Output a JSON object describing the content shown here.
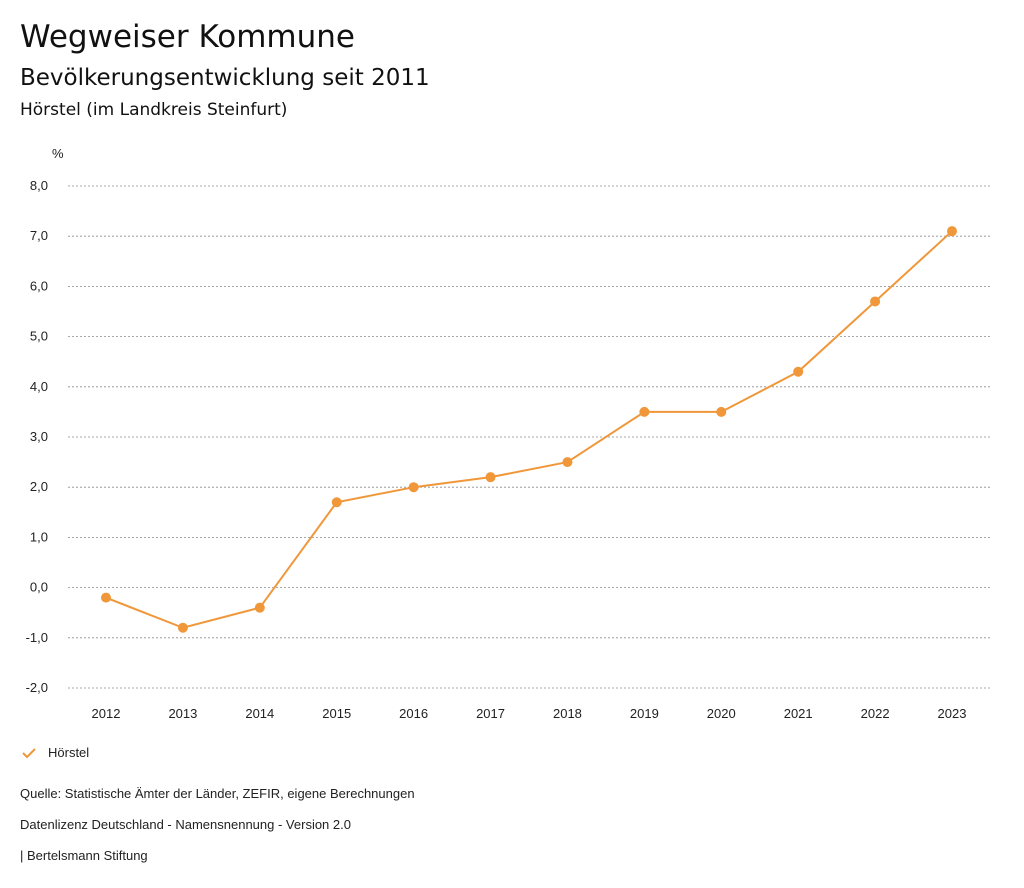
{
  "header": {
    "brand": "Wegweiser Kommune",
    "title": "Bevölkerungsentwicklung seit 2011",
    "subtitle": "Hörstel (im Landkreis Steinfurt)"
  },
  "chart_data": {
    "type": "line",
    "title": "Bevölkerungsentwicklung seit 2011",
    "subtitle": "Hörstel (im Landkreis Steinfurt)",
    "xlabel": "",
    "ylabel": "%",
    "ylim": [
      -2.0,
      8.0
    ],
    "yticks": [
      -2.0,
      -1.0,
      0.0,
      1.0,
      2.0,
      3.0,
      4.0,
      5.0,
      6.0,
      7.0,
      8.0
    ],
    "ytick_labels": [
      "-2,0",
      "-1,0",
      "0,0",
      "1,0",
      "2,0",
      "3,0",
      "4,0",
      "5,0",
      "6,0",
      "7,0",
      "8,0"
    ],
    "categories": [
      "2012",
      "2013",
      "2014",
      "2015",
      "2016",
      "2017",
      "2018",
      "2019",
      "2020",
      "2021",
      "2022",
      "2023"
    ],
    "series": [
      {
        "name": "Hörstel",
        "color": "#f0973a",
        "values": [
          -0.2,
          -0.8,
          -0.4,
          1.7,
          2.0,
          2.2,
          2.5,
          3.5,
          3.5,
          4.3,
          5.7,
          7.1
        ]
      }
    ],
    "grid": true,
    "legend": "bottom-left"
  },
  "legend": {
    "items": [
      {
        "label": "Hörstel",
        "icon": "check-icon",
        "color": "#f0973a"
      }
    ]
  },
  "footer": {
    "source": "Quelle: Statistische Ämter der Länder, ZEFIR, eigene Berechnungen",
    "license": "Datenlizenz Deutschland - Namensnennung - Version 2.0",
    "organization": "| Bertelsmann Stiftung"
  }
}
